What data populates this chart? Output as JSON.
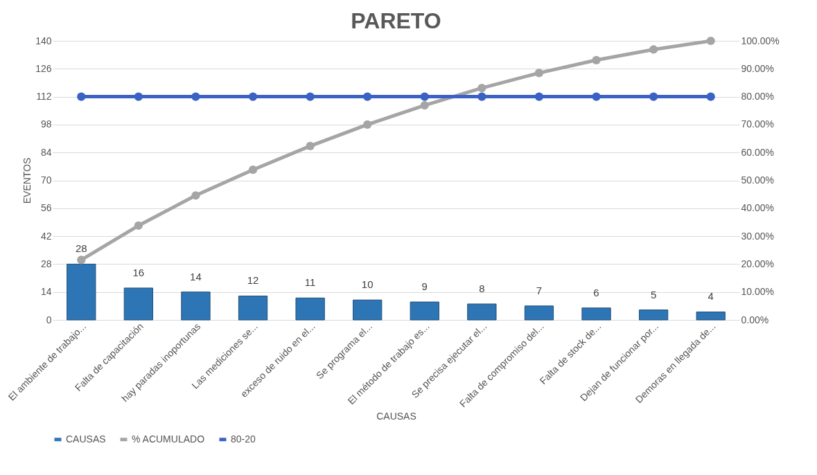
{
  "chart_data": {
    "type": "bar",
    "title": "PARETO",
    "xlabel": "CAUSAS",
    "ylabel": "EVENTOS",
    "categories": [
      "El ambiente de trabajo...",
      "Falta de capacitación",
      "hay paradas inoportunas",
      "Las mediciones se...",
      "exceso de ruido en el...",
      "Se programa el...",
      "El método de trabajo es...",
      "Se precisa ejecutar el...",
      "Falta de compromiso del...",
      "Falta de stock de...",
      "Dejan de funcionar por...",
      "Demoras en llegada de..."
    ],
    "series": [
      {
        "name": "CAUSAS",
        "color": "#2e75b6",
        "values": [
          28,
          16,
          14,
          12,
          11,
          10,
          9,
          8,
          7,
          6,
          5,
          4
        ],
        "value_labels": [
          "28",
          "16",
          "14",
          "12",
          "11",
          "10",
          "9",
          "8",
          "7",
          "6",
          "5",
          "4"
        ]
      },
      {
        "name": "% ACUMULADO",
        "type": "line",
        "axis": "y2",
        "color": "#a5a5a5",
        "values": [
          21.5,
          33.8,
          44.6,
          53.8,
          62.3,
          70.0,
          76.9,
          83.1,
          88.5,
          93.1,
          96.9,
          100
        ]
      },
      {
        "name": "80-20",
        "type": "line",
        "axis": "y2",
        "color": "#3a62c4",
        "values": [
          80,
          80,
          80,
          80,
          80,
          80,
          80,
          80,
          80,
          80,
          80,
          80
        ]
      }
    ],
    "ylim": [
      0,
      140
    ],
    "yticks": [
      0,
      14,
      28,
      42,
      56,
      70,
      84,
      98,
      112,
      126,
      140
    ],
    "y2lim": [
      0,
      100
    ],
    "y2ticks": [
      {
        "value": 0,
        "label": "0.00%"
      },
      {
        "value": 10,
        "label": "10.00%"
      },
      {
        "value": 20,
        "label": "20.00%"
      },
      {
        "value": 30,
        "label": "30.00%"
      },
      {
        "value": 40,
        "label": "40.00%"
      },
      {
        "value": 50,
        "label": "50.00%"
      },
      {
        "value": 60,
        "label": "60.00%"
      },
      {
        "value": 70,
        "label": "70.00%"
      },
      {
        "value": 80,
        "label": "80.00%"
      },
      {
        "value": 90,
        "label": "90.00%"
      },
      {
        "value": 100,
        "label": "100.00%"
      }
    ],
    "grid": "y",
    "legend": "bottom",
    "marker": "circle",
    "line_style": "solid"
  }
}
